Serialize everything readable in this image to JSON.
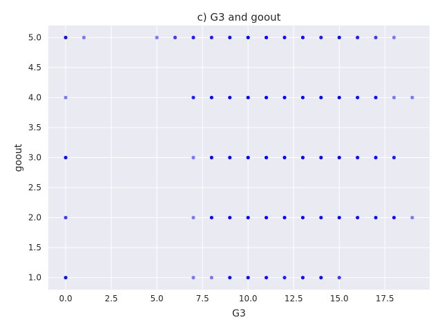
{
  "chart_data": {
    "type": "scatter",
    "title": "c) G3 and goout",
    "xlabel": "G3",
    "ylabel": "goout",
    "xlim": [
      -0.95,
      19.95
    ],
    "ylim": [
      0.8,
      5.2
    ],
    "xticks": [
      0.0,
      2.5,
      5.0,
      7.5,
      10.0,
      12.5,
      15.0,
      17.5
    ],
    "xtick_labels": [
      "0.0",
      "2.5",
      "5.0",
      "7.5",
      "10.0",
      "12.5",
      "15.0",
      "17.5"
    ],
    "yticks": [
      1.0,
      1.5,
      2.0,
      2.5,
      3.0,
      3.5,
      4.0,
      4.5,
      5.0
    ],
    "ytick_labels": [
      "1.0",
      "1.5",
      "2.0",
      "2.5",
      "3.0",
      "3.5",
      "4.0",
      "4.5",
      "5.0"
    ],
    "grid": true,
    "background": "#eaeaf2",
    "point_color": "#0000ff",
    "points": [
      {
        "x": 0,
        "y": 5,
        "n": 4
      },
      {
        "x": 1,
        "y": 5,
        "n": 1
      },
      {
        "x": 5,
        "y": 5,
        "n": 1
      },
      {
        "x": 6,
        "y": 5,
        "n": 2
      },
      {
        "x": 7,
        "y": 5,
        "n": 3
      },
      {
        "x": 8,
        "y": 5,
        "n": 3
      },
      {
        "x": 9,
        "y": 5,
        "n": 4
      },
      {
        "x": 10,
        "y": 5,
        "n": 5
      },
      {
        "x": 11,
        "y": 5,
        "n": 5
      },
      {
        "x": 12,
        "y": 5,
        "n": 4
      },
      {
        "x": 13,
        "y": 5,
        "n": 4
      },
      {
        "x": 14,
        "y": 5,
        "n": 3
      },
      {
        "x": 15,
        "y": 5,
        "n": 4
      },
      {
        "x": 16,
        "y": 5,
        "n": 3
      },
      {
        "x": 17,
        "y": 5,
        "n": 2
      },
      {
        "x": 18,
        "y": 5,
        "n": 1
      },
      {
        "x": 0,
        "y": 4,
        "n": 1
      },
      {
        "x": 7,
        "y": 4,
        "n": 3
      },
      {
        "x": 8,
        "y": 4,
        "n": 5
      },
      {
        "x": 9,
        "y": 4,
        "n": 5
      },
      {
        "x": 10,
        "y": 4,
        "n": 6
      },
      {
        "x": 11,
        "y": 4,
        "n": 6
      },
      {
        "x": 12,
        "y": 4,
        "n": 6
      },
      {
        "x": 13,
        "y": 4,
        "n": 5
      },
      {
        "x": 14,
        "y": 4,
        "n": 5
      },
      {
        "x": 15,
        "y": 4,
        "n": 5
      },
      {
        "x": 16,
        "y": 4,
        "n": 4
      },
      {
        "x": 17,
        "y": 4,
        "n": 4
      },
      {
        "x": 18,
        "y": 4,
        "n": 1
      },
      {
        "x": 19,
        "y": 4,
        "n": 1
      },
      {
        "x": 0,
        "y": 3,
        "n": 4
      },
      {
        "x": 7,
        "y": 3,
        "n": 1
      },
      {
        "x": 8,
        "y": 3,
        "n": 5
      },
      {
        "x": 9,
        "y": 3,
        "n": 5
      },
      {
        "x": 10,
        "y": 3,
        "n": 6
      },
      {
        "x": 11,
        "y": 3,
        "n": 6
      },
      {
        "x": 12,
        "y": 3,
        "n": 6
      },
      {
        "x": 13,
        "y": 3,
        "n": 5
      },
      {
        "x": 14,
        "y": 3,
        "n": 5
      },
      {
        "x": 15,
        "y": 3,
        "n": 5
      },
      {
        "x": 16,
        "y": 3,
        "n": 4
      },
      {
        "x": 17,
        "y": 3,
        "n": 4
      },
      {
        "x": 18,
        "y": 3,
        "n": 3
      },
      {
        "x": 0,
        "y": 2,
        "n": 2
      },
      {
        "x": 7,
        "y": 2,
        "n": 1
      },
      {
        "x": 8,
        "y": 2,
        "n": 5
      },
      {
        "x": 9,
        "y": 2,
        "n": 5
      },
      {
        "x": 10,
        "y": 2,
        "n": 6
      },
      {
        "x": 11,
        "y": 2,
        "n": 6
      },
      {
        "x": 12,
        "y": 2,
        "n": 6
      },
      {
        "x": 13,
        "y": 2,
        "n": 5
      },
      {
        "x": 14,
        "y": 2,
        "n": 4
      },
      {
        "x": 15,
        "y": 2,
        "n": 5
      },
      {
        "x": 16,
        "y": 2,
        "n": 4
      },
      {
        "x": 17,
        "y": 2,
        "n": 4
      },
      {
        "x": 18,
        "y": 2,
        "n": 4
      },
      {
        "x": 19,
        "y": 2,
        "n": 1
      },
      {
        "x": 0,
        "y": 1,
        "n": 4
      },
      {
        "x": 7,
        "y": 1,
        "n": 1
      },
      {
        "x": 8,
        "y": 1,
        "n": 1
      },
      {
        "x": 9,
        "y": 1,
        "n": 4
      },
      {
        "x": 10,
        "y": 1,
        "n": 4
      },
      {
        "x": 11,
        "y": 1,
        "n": 4
      },
      {
        "x": 12,
        "y": 1,
        "n": 3
      },
      {
        "x": 13,
        "y": 1,
        "n": 4
      },
      {
        "x": 14,
        "y": 1,
        "n": 4
      },
      {
        "x": 15,
        "y": 1,
        "n": 2
      }
    ]
  }
}
